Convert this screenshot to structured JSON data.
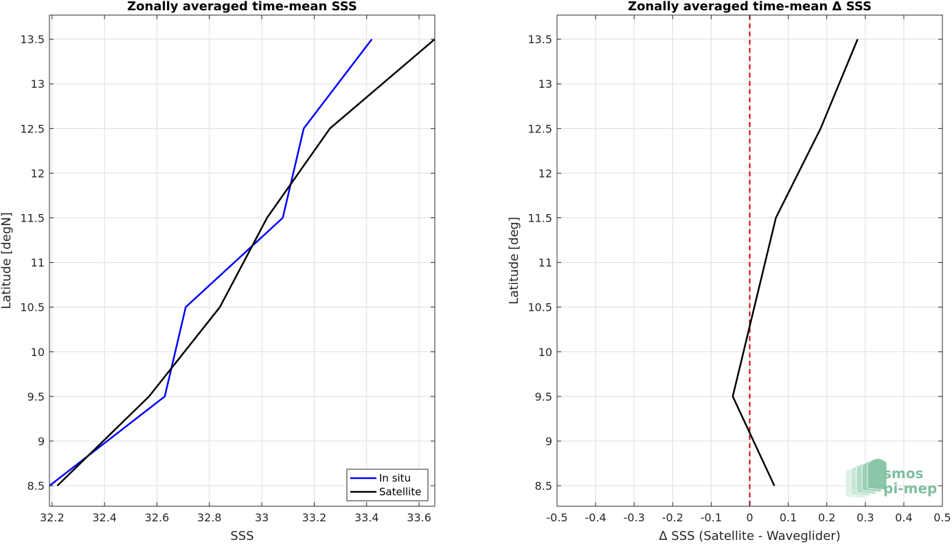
{
  "chart_data": [
    {
      "type": "line",
      "title": "Zonally averaged time-mean SSS",
      "xlabel": "SSS",
      "ylabel": "Latitude [degN]",
      "xlim": [
        32.19,
        33.66
      ],
      "ylim": [
        8.27,
        13.77
      ],
      "xticks": [
        32.2,
        32.4,
        32.6,
        32.8,
        33,
        33.2,
        33.4,
        33.6
      ],
      "xtick_labels": [
        "32.2",
        "32.4",
        "32.6",
        "32.8",
        "33",
        "33.2",
        "33.4",
        "33.6"
      ],
      "yticks": [
        8.5,
        9,
        9.5,
        10,
        10.5,
        11,
        11.5,
        12,
        12.5,
        13,
        13.5
      ],
      "ytick_labels": [
        "8.5",
        "9",
        "9.5",
        "10",
        "10.5",
        "11",
        "11.5",
        "12",
        "12.5",
        "13",
        "13.5"
      ],
      "grid": true,
      "legend": "bottom-right",
      "series": [
        {
          "name": "In situ",
          "color": "#0000ff",
          "x": [
            32.19,
            32.63,
            32.71,
            33.08,
            33.16,
            33.42
          ],
          "y": [
            8.5,
            9.5,
            10.5,
            11.5,
            12.5,
            13.5
          ]
        },
        {
          "name": "Satellite",
          "color": "#000000",
          "x": [
            32.22,
            32.57,
            32.84,
            33.02,
            33.26,
            33.66
          ],
          "y": [
            8.5,
            9.5,
            10.5,
            11.5,
            12.5,
            13.5
          ]
        }
      ]
    },
    {
      "type": "line",
      "title": "Zonally averaged time-mean Δ SSS",
      "xlabel": "Δ SSS (Satellite - Waveglider)",
      "ylabel": "Latitude [deg]",
      "xlim": [
        -0.5,
        0.5
      ],
      "ylim": [
        8.27,
        13.77
      ],
      "xticks": [
        -0.5,
        -0.4,
        -0.3,
        -0.2,
        -0.1,
        0,
        0.1,
        0.2,
        0.3,
        0.4,
        0.5
      ],
      "xtick_labels": [
        "-0.5",
        "-0.4",
        "-0.3",
        "-0.2",
        "-0.1",
        "0",
        "0.1",
        "0.2",
        "0.3",
        "0.4",
        "0.5"
      ],
      "yticks": [
        8.5,
        9,
        9.5,
        10,
        10.5,
        11,
        11.5,
        12,
        12.5,
        13,
        13.5
      ],
      "ytick_labels": [
        "8.5",
        "9",
        "9.5",
        "10",
        "10.5",
        "11",
        "11.5",
        "12",
        "12.5",
        "13",
        "13.5"
      ],
      "grid": true,
      "zero_line": {
        "x": 0,
        "color": "#cc0000",
        "style": "dashed"
      },
      "series": [
        {
          "color": "#000000",
          "x": [
            0.064,
            -0.044,
            0.068,
            0.184,
            0.28
          ],
          "y": [
            8.5,
            9.5,
            11.5,
            12.5,
            13.5
          ]
        }
      ]
    }
  ],
  "logo": {
    "line1": "smos",
    "line2": "pi-mep",
    "color": "#7fbf9f"
  }
}
